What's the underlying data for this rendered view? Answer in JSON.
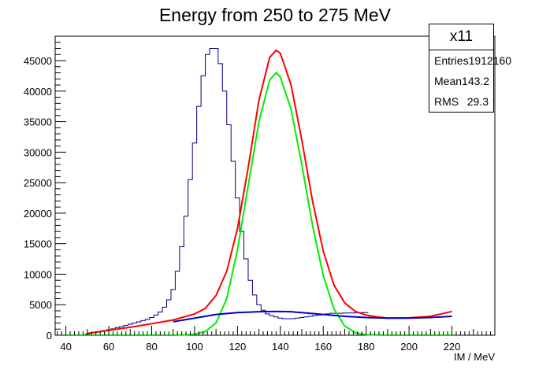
{
  "chart_data": {
    "type": "histogram",
    "title": "Energy from 250 to 275 MeV",
    "xlabel": "IM / MeV",
    "ylabel": "",
    "xlim": [
      35,
      240
    ],
    "ylim": [
      0,
      49000
    ],
    "x_ticks": [
      40,
      60,
      80,
      100,
      120,
      140,
      160,
      180,
      200,
      220
    ],
    "y_ticks": [
      0,
      5000,
      10000,
      15000,
      20000,
      25000,
      30000,
      35000,
      40000,
      45000
    ],
    "bin_width": 2,
    "histogram": {
      "color": "#000080",
      "x_start": 35,
      "counts": [
        0,
        0,
        0,
        0,
        0,
        0,
        0,
        200,
        350,
        450,
        600,
        750,
        900,
        1050,
        1250,
        1400,
        1600,
        1800,
        2000,
        2200,
        2400,
        2600,
        2900,
        3300,
        3800,
        4600,
        5800,
        7500,
        10500,
        14500,
        19500,
        25500,
        31500,
        37500,
        42500,
        46000,
        47000,
        47000,
        44500,
        40000,
        34500,
        28500,
        22500,
        17000,
        12500,
        9000,
        6600,
        5000,
        4100,
        3500,
        3200,
        3000,
        2800,
        2700,
        2700,
        2700,
        2800,
        2900,
        3000,
        3100,
        3200,
        3300,
        3400,
        3500,
        3600,
        3600,
        3600,
        3650,
        3650,
        3650,
        3700,
        3700,
        3700
      ]
    },
    "series": [
      {
        "color": "#ff0000",
        "x": [
          50,
          60,
          70,
          80,
          90,
          100,
          105,
          110,
          115,
          120,
          125,
          130,
          135,
          138,
          140,
          145,
          150,
          155,
          160,
          165,
          170,
          175,
          180,
          185,
          190,
          200,
          210,
          220
        ],
        "y": [
          300,
          800,
          1300,
          1900,
          2500,
          3500,
          4400,
          6500,
          10500,
          17500,
          27500,
          38500,
          45500,
          46700,
          46200,
          41000,
          32000,
          22000,
          13800,
          8200,
          5300,
          3900,
          3300,
          3000,
          2800,
          2850,
          3100,
          3900
        ]
      },
      {
        "color": "#00ee00",
        "x": [
          40,
          90,
          95,
          100,
          105,
          110,
          115,
          120,
          125,
          130,
          135,
          138,
          140,
          145,
          150,
          155,
          160,
          165,
          170,
          175,
          180,
          190,
          200,
          210,
          220
        ],
        "y": [
          0,
          0,
          50,
          150,
          600,
          2000,
          6000,
          14000,
          24500,
          35000,
          41800,
          43000,
          42300,
          37000,
          28000,
          18000,
          9800,
          4300,
          1500,
          400,
          80,
          0,
          0,
          0,
          0
        ]
      },
      {
        "color": "#0000cc",
        "x": [
          90,
          100,
          110,
          120,
          130,
          138,
          145,
          150,
          160,
          170,
          180,
          190,
          200,
          210,
          220
        ],
        "y": [
          2200,
          2800,
          3400,
          3700,
          3850,
          3900,
          3850,
          3700,
          3400,
          3100,
          2900,
          2800,
          2800,
          2900,
          3100
        ]
      }
    ]
  },
  "stats": {
    "name": "x11",
    "entries_label": "Entries",
    "entries_value": "1912160",
    "mean_label": "Mean",
    "mean_value": "143.2",
    "rms_label": "RMS",
    "rms_value": "29.3"
  }
}
